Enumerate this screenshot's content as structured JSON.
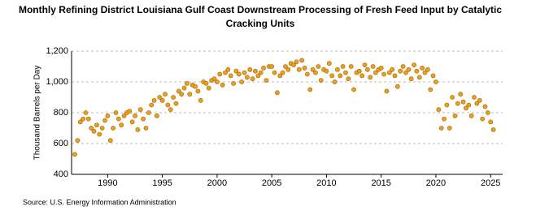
{
  "chart_data": {
    "type": "scatter",
    "title": "Monthly Refining District Louisiana Gulf Coast Downstream Processing of Fresh Feed Input by Catalytic Cracking Units",
    "y_label": "Thousand Barrels per Day",
    "source": "Source: U.S. Energy Information Administration",
    "color": "#e8a020",
    "grid": true,
    "xlim": [
      1986.7,
      2026.1
    ],
    "xticks": [
      1990,
      1995,
      2000,
      2005,
      2010,
      2015,
      2020,
      2025
    ],
    "ylim": [
      400,
      1200
    ],
    "yticks": [
      400,
      600,
      800,
      {
        "value": 1000,
        "label": "1,000"
      },
      {
        "value": 1200,
        "label": "1,200"
      }
    ],
    "series": [
      {
        "name": "Catalytic Cracking Units",
        "x": [
          1987,
          1987.25,
          1987.5,
          1987.75,
          1988,
          1988.25,
          1988.5,
          1988.75,
          1989,
          1989.25,
          1989.5,
          1989.75,
          1990,
          1990.25,
          1990.5,
          1990.75,
          1991,
          1991.25,
          1991.5,
          1991.75,
          1992,
          1992.25,
          1992.5,
          1992.75,
          1993,
          1993.25,
          1993.5,
          1993.75,
          1994,
          1994.25,
          1994.5,
          1994.75,
          1995,
          1995.25,
          1995.5,
          1995.75,
          1996,
          1996.25,
          1996.5,
          1996.75,
          1997,
          1997.25,
          1997.5,
          1997.75,
          1998,
          1998.25,
          1998.5,
          1998.75,
          1999,
          1999.25,
          1999.5,
          1999.75,
          2000,
          2000.25,
          2000.5,
          2000.75,
          2001,
          2001.25,
          2001.5,
          2001.75,
          2002,
          2002.25,
          2002.5,
          2002.75,
          2003,
          2003.25,
          2003.5,
          2003.75,
          2004,
          2004.25,
          2004.5,
          2004.75,
          2005,
          2005.25,
          2005.5,
          2005.75,
          2006,
          2006.25,
          2006.5,
          2006.75,
          2007,
          2007.25,
          2007.5,
          2007.75,
          2008,
          2008.25,
          2008.5,
          2008.75,
          2009,
          2009.25,
          2009.5,
          2009.75,
          2010,
          2010.25,
          2010.5,
          2010.75,
          2011,
          2011.25,
          2011.5,
          2011.75,
          2012,
          2012.25,
          2012.5,
          2012.75,
          2013,
          2013.25,
          2013.5,
          2013.75,
          2014,
          2014.25,
          2014.5,
          2014.75,
          2015,
          2015.25,
          2015.5,
          2015.75,
          2016,
          2016.25,
          2016.5,
          2016.75,
          2017,
          2017.25,
          2017.5,
          2017.75,
          2018,
          2018.25,
          2018.5,
          2018.75,
          2019,
          2019.25,
          2019.5,
          2019.75,
          2020,
          2020.25,
          2020.5,
          2020.75,
          2021,
          2021.25,
          2021.5,
          2021.75,
          2022,
          2022.25,
          2022.5,
          2022.75,
          2023,
          2023.25,
          2023.5,
          2023.75,
          2024,
          2024.25,
          2024.5,
          2024.75,
          2025,
          2025.25
        ],
        "values": [
          530,
          620,
          740,
          760,
          800,
          760,
          700,
          680,
          720,
          660,
          700,
          750,
          780,
          620,
          700,
          800,
          760,
          720,
          780,
          800,
          810,
          740,
          780,
          690,
          820,
          760,
          700,
          800,
          850,
          880,
          780,
          900,
          880,
          920,
          850,
          820,
          900,
          860,
          940,
          920,
          960,
          990,
          920,
          980,
          970,
          940,
          880,
          1000,
          990,
          960,
          1010,
          1020,
          1000,
          1050,
          980,
          1060,
          1080,
          1040,
          990,
          1070,
          1050,
          1000,
          1060,
          1030,
          1080,
          1020,
          1070,
          1040,
          1060,
          1090,
          1010,
          1100,
          1100,
          1060,
          930,
          1040,
          1060,
          1100,
          1080,
          1120,
          1110,
          1130,
          1080,
          1140,
          1090,
          1050,
          950,
          1080,
          1060,
          1100,
          1010,
          1080,
          1070,
          1120,
          1040,
          1000,
          1080,
          1040,
          1100,
          1060,
          1020,
          1100,
          950,
          1060,
          1070,
          1040,
          1110,
          1080,
          1030,
          1100,
          1060,
          1080,
          1090,
          1050,
          940,
          1060,
          1080,
          1040,
          970,
          1070,
          1100,
          1060,
          1080,
          1020,
          1110,
          1070,
          1030,
          1090,
          1060,
          1080,
          950,
          1040,
          1000,
          820,
          700,
          760,
          850,
          700,
          900,
          780,
          860,
          920,
          870,
          830,
          850,
          780,
          900,
          860,
          880,
          760,
          840,
          800,
          740,
          690
        ]
      }
    ]
  }
}
